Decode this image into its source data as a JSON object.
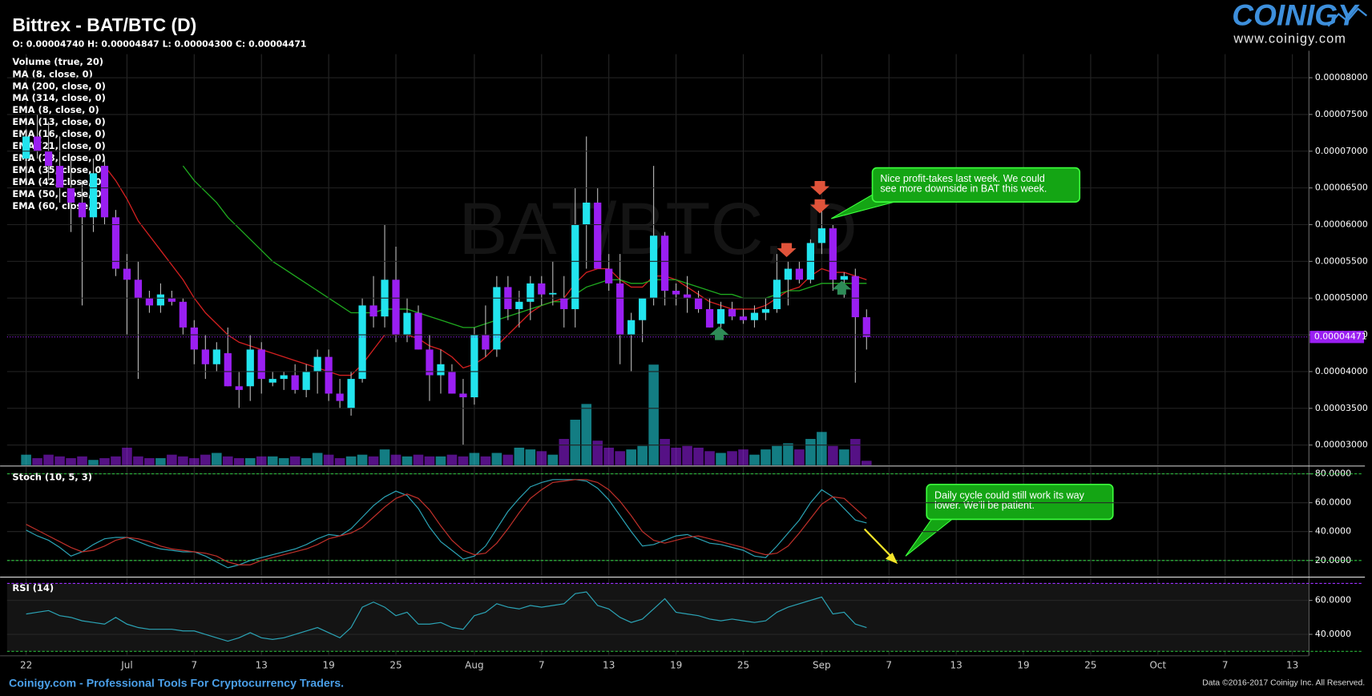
{
  "header": {
    "title": "Bittrex - BAT/BTC (D)",
    "ohlc": "O: 0.00004740 H: 0.00004847 L: 0.00004300 C: 0.00004471",
    "logo": "COINIGY",
    "url": "www.coinigy.com"
  },
  "chart_data": [
    {
      "type": "candlestick",
      "watermark": "BAT/BTC, D",
      "open": [
        6.9e-05,
        7.2e-05,
        7e-05,
        6.8e-05,
        6.5e-05,
        6.3e-05,
        6.1e-05,
        6.8e-05,
        6.1e-05,
        5.4e-05,
        5.25e-05,
        5e-05,
        4.9e-05,
        5e-05,
        4.95e-05,
        4.6e-05,
        4.3e-05,
        4.1e-05,
        4.25e-05,
        3.8e-05,
        3.8e-05,
        4.3e-05,
        3.85e-05,
        3.9e-05,
        3.95e-05,
        3.75e-05,
        4e-05,
        4.2e-05,
        3.7e-05,
        3.5e-05,
        3.9e-05,
        4.9e-05,
        4.75e-05,
        5.25e-05,
        4.5e-05,
        4.8e-05,
        4.3e-05,
        3.95e-05,
        4e-05,
        3.7e-05,
        3.65e-05,
        4.5e-05,
        4.3e-05,
        5.15e-05,
        4.85e-05,
        4.95e-05,
        5.2e-05,
        5.05e-05,
        5e-05,
        4.85e-05,
        6e-05,
        6.3e-05,
        5.4e-05,
        5.2e-05,
        4.5e-05,
        4.7e-05,
        5e-05,
        5.85e-05,
        5.1e-05,
        5.05e-05,
        5e-05,
        4.85e-05,
        4.65e-05,
        4.85e-05,
        4.75e-05,
        4.7e-05,
        4.8e-05,
        4.85e-05,
        5.25e-05,
        5.4e-05,
        5.25e-05,
        5.75e-05,
        5.95e-05,
        5.25e-05,
        5.3e-05,
        4.74e-05
      ],
      "high": [
        7.3e-05,
        7.5e-05,
        7.4e-05,
        7.2e-05,
        6.9e-05,
        6.6e-05,
        6.9e-05,
        6.9e-05,
        6.2e-05,
        5.6e-05,
        5.5e-05,
        5.1e-05,
        5.2e-05,
        5.1e-05,
        5e-05,
        4.7e-05,
        4.5e-05,
        4.4e-05,
        4.6e-05,
        4e-05,
        4.5e-05,
        4.4e-05,
        4e-05,
        4e-05,
        4.1e-05,
        4.1e-05,
        4.3e-05,
        4.3e-05,
        3.9e-05,
        4e-05,
        5e-05,
        5.3e-05,
        6e-05,
        5.7e-05,
        5e-05,
        4.9e-05,
        4.5e-05,
        4.3e-05,
        4.1e-05,
        3.9e-05,
        4.6e-05,
        4.9e-05,
        5.3e-05,
        5.3e-05,
        5.1e-05,
        5.3e-05,
        5.3e-05,
        5.5e-05,
        5.3e-05,
        6.5e-05,
        7.2e-05,
        6.5e-05,
        5.6e-05,
        5.6e-05,
        4.8e-05,
        5e-05,
        6.8e-05,
        5.9e-05,
        5.2e-05,
        5.3e-05,
        5.1e-05,
        5e-05,
        4.95e-05,
        4.95e-05,
        4.85e-05,
        4.9e-05,
        5e-05,
        5.6e-05,
        5.5e-05,
        5.5e-05,
        5.8e-05,
        6.2e-05,
        6e-05,
        5.35e-05,
        5.4e-05,
        4.847e-05
      ],
      "low": [
        6.6e-05,
        6.9e-05,
        6.6e-05,
        6.3e-05,
        5.9e-05,
        4.9e-05,
        5.9e-05,
        6e-05,
        5.3e-05,
        4.5e-05,
        3.9e-05,
        4.8e-05,
        4.8e-05,
        4.9e-05,
        4.5e-05,
        4.1e-05,
        3.9e-05,
        4e-05,
        3.8e-05,
        3.5e-05,
        3.6e-05,
        3.7e-05,
        3.8e-05,
        3.75e-05,
        3.7e-05,
        3.65e-05,
        3.7e-05,
        3.6e-05,
        3.5e-05,
        3.4e-05,
        3.85e-05,
        4.6e-05,
        4.6e-05,
        4.4e-05,
        4.4e-05,
        4.3e-05,
        3.6e-05,
        3.7e-05,
        3.7e-05,
        3e-05,
        3.55e-05,
        4.2e-05,
        4.2e-05,
        4.7e-05,
        4.6e-05,
        4.7e-05,
        4.9e-05,
        4.9e-05,
        4.6e-05,
        4.6e-05,
        5.4e-05,
        5.4e-05,
        5.1e-05,
        4.1e-05,
        4e-05,
        4.4e-05,
        4.9e-05,
        4.9e-05,
        4.9e-05,
        4.8e-05,
        4.8e-05,
        4.6e-05,
        4.6e-05,
        4.7e-05,
        4.65e-05,
        4.6e-05,
        4.7e-05,
        4.8e-05,
        4.9e-05,
        5.2e-05,
        5.2e-05,
        5.6e-05,
        5.1e-05,
        5e-05,
        3.85e-05,
        4.3e-05
      ],
      "close": [
        7.2e-05,
        7e-05,
        6.8e-05,
        6.5e-05,
        6.3e-05,
        6.1e-05,
        6.7e-05,
        6.1e-05,
        5.4e-05,
        5.25e-05,
        5e-05,
        4.9e-05,
        5.05e-05,
        4.95e-05,
        4.6e-05,
        4.3e-05,
        4.1e-05,
        4.3e-05,
        3.8e-05,
        3.75e-05,
        4.3e-05,
        3.9e-05,
        3.9e-05,
        3.95e-05,
        3.75e-05,
        4e-05,
        4.2e-05,
        3.7e-05,
        3.6e-05,
        3.9e-05,
        4.9e-05,
        4.75e-05,
        5.25e-05,
        4.5e-05,
        4.8e-05,
        4.3e-05,
        3.95e-05,
        4.1e-05,
        3.7e-05,
        3.65e-05,
        4.5e-05,
        4.3e-05,
        5.15e-05,
        4.85e-05,
        4.95e-05,
        5.2e-05,
        5.05e-05,
        5.07e-05,
        4.85e-05,
        6e-05,
        6.3e-05,
        5.4e-05,
        5.2e-05,
        4.5e-05,
        4.7e-05,
        5e-05,
        5.85e-05,
        5.1e-05,
        5.05e-05,
        5e-05,
        4.85e-05,
        4.6e-05,
        4.85e-05,
        4.75e-05,
        4.7e-05,
        4.8e-05,
        4.85e-05,
        5.25e-05,
        5.4e-05,
        5.25e-05,
        5.75e-05,
        5.95e-05,
        5.25e-05,
        5.3e-05,
        4.74e-05,
        4.471e-05
      ],
      "up_color": "#22e4ee",
      "down_color": "#9a1ff2",
      "close_label": "0.00004471",
      "xlim": [
        -1.7,
        114.4
      ],
      "xticks": [
        {
          "value": 0,
          "label": "22"
        },
        {
          "value": 9,
          "label": "Jul"
        },
        {
          "value": 15,
          "label": "7"
        },
        {
          "value": 21,
          "label": "13"
        },
        {
          "value": 27,
          "label": "19"
        },
        {
          "value": 33,
          "label": "25"
        },
        {
          "value": 40,
          "label": "Aug"
        },
        {
          "value": 46,
          "label": "7"
        },
        {
          "value": 52,
          "label": "13"
        },
        {
          "value": 58,
          "label": "19"
        },
        {
          "value": 64,
          "label": "25"
        },
        {
          "value": 71,
          "label": "Sep"
        },
        {
          "value": 77,
          "label": "7"
        },
        {
          "value": 83,
          "label": "13"
        },
        {
          "value": 89,
          "label": "19"
        },
        {
          "value": 95,
          "label": "25"
        },
        {
          "value": 101,
          "label": "Oct"
        },
        {
          "value": 107,
          "label": "7"
        },
        {
          "value": 113,
          "label": "13"
        }
      ],
      "ylim": [
        2.726e-05,
        8.32e-05
      ],
      "yticks": [
        {
          "value": 3e-05,
          "label": "0.00003000"
        },
        {
          "value": 3.5e-05,
          "label": "0.00003500"
        },
        {
          "value": 4e-05,
          "label": "0.00004000"
        },
        {
          "value": 4.5e-05,
          "label": "0.00004500"
        },
        {
          "value": 5e-05,
          "label": "0.00005000"
        },
        {
          "value": 5.5e-05,
          "label": "0.00005500"
        },
        {
          "value": 6e-05,
          "label": "0.00006000"
        },
        {
          "value": 6.5e-05,
          "label": "0.00006500"
        },
        {
          "value": 7e-05,
          "label": "0.00007000"
        },
        {
          "value": 7.5e-05,
          "label": "0.00007500"
        },
        {
          "value": 8e-05,
          "label": "0.00008000"
        }
      ],
      "grid": true,
      "volume": {
        "name": "Volume (true, 20)",
        "values": [
          12,
          8,
          12,
          10,
          8,
          10,
          6,
          8,
          10,
          20,
          10,
          8,
          8,
          12,
          10,
          8,
          12,
          14,
          10,
          8,
          8,
          10,
          10,
          8,
          10,
          8,
          14,
          12,
          8,
          10,
          12,
          10,
          18,
          12,
          10,
          12,
          10,
          10,
          12,
          10,
          14,
          10,
          14,
          12,
          20,
          18,
          16,
          12,
          30,
          52,
          70,
          28,
          20,
          16,
          18,
          22,
          115,
          30,
          20,
          22,
          20,
          16,
          14,
          16,
          18,
          12,
          18,
          22,
          25,
          18,
          30,
          38,
          22,
          18,
          30,
          5
        ]
      },
      "overlays": [
        {
          "name": "MA (8, close, 0)"
        },
        {
          "name": "MA (200, close, 0)"
        },
        {
          "name": "MA (314, close, 0)"
        },
        {
          "name": "EMA (8, close, 0)",
          "color": "#d42020",
          "values": [
            null,
            null,
            null,
            null,
            null,
            null,
            null,
            6.8e-05,
            6.6e-05,
            6.35e-05,
            6.05e-05,
            5.85e-05,
            5.65e-05,
            5.45e-05,
            5.25e-05,
            5e-05,
            4.8e-05,
            4.65e-05,
            4.5e-05,
            4.4e-05,
            4.35e-05,
            4.3e-05,
            4.25e-05,
            4.2e-05,
            4.15e-05,
            4.1e-05,
            4.05e-05,
            4e-05,
            3.95e-05,
            3.95e-05,
            4.1e-05,
            4.3e-05,
            4.5e-05,
            4.5e-05,
            4.5e-05,
            4.45e-05,
            4.35e-05,
            4.3e-05,
            4.2e-05,
            4.05e-05,
            4.1e-05,
            4.2e-05,
            4.35e-05,
            4.5e-05,
            4.65e-05,
            4.8e-05,
            4.9e-05,
            4.95e-05,
            5e-05,
            5.2e-05,
            5.35e-05,
            5.4e-05,
            5.4e-05,
            5.25e-05,
            5.15e-05,
            5.15e-05,
            5.3e-05,
            5.3e-05,
            5.25e-05,
            5.15e-05,
            5.05e-05,
            4.95e-05,
            4.9e-05,
            4.85e-05,
            4.85e-05,
            4.85e-05,
            4.9e-05,
            5e-05,
            5.1e-05,
            5.15e-05,
            5.3e-05,
            5.4e-05,
            5.35e-05,
            5.35e-05,
            5.3e-05,
            5.25e-05
          ]
        },
        {
          "name": "EMA (13, close, 0)"
        },
        {
          "name": "EMA (16, close, 0)"
        },
        {
          "name": "EMA (21, close, 0)"
        },
        {
          "name": "EMA (28, close, 0)",
          "color": "#1faa1f",
          "values": [
            null,
            null,
            null,
            null,
            null,
            null,
            null,
            null,
            null,
            null,
            null,
            null,
            null,
            null,
            6.8e-05,
            6.6e-05,
            6.45e-05,
            6.3e-05,
            6.1e-05,
            5.95e-05,
            5.8e-05,
            5.65e-05,
            5.5e-05,
            5.4e-05,
            5.3e-05,
            5.2e-05,
            5.1e-05,
            5e-05,
            4.9e-05,
            4.8e-05,
            4.8e-05,
            4.8e-05,
            4.85e-05,
            4.85e-05,
            4.85e-05,
            4.8e-05,
            4.75e-05,
            4.7e-05,
            4.65e-05,
            4.6e-05,
            4.6e-05,
            4.65e-05,
            4.7e-05,
            4.75e-05,
            4.8e-05,
            4.85e-05,
            4.9e-05,
            4.95e-05,
            4.95e-05,
            5.05e-05,
            5.15e-05,
            5.2e-05,
            5.25e-05,
            5.25e-05,
            5.2e-05,
            5.2e-05,
            5.25e-05,
            5.25e-05,
            5.25e-05,
            5.2e-05,
            5.15e-05,
            5.1e-05,
            5.05e-05,
            5.05e-05,
            5e-05,
            5e-05,
            5e-05,
            5.05e-05,
            5.1e-05,
            5.1e-05,
            5.15e-05,
            5.2e-05,
            5.2e-05,
            5.2e-05,
            5.2e-05,
            5.2e-05
          ]
        },
        {
          "name": "EMA (35, close, 0)"
        },
        {
          "name": "EMA (42, close, 0)"
        },
        {
          "name": "EMA (50, close, 0)"
        },
        {
          "name": "EMA (60, close, 0)"
        }
      ],
      "annotations": [
        {
          "lines": [
            "Nice profit-takes last week.  We could",
            "see more downside in BAT this week."
          ]
        },
        {
          "lines": [
            "Daily cycle could still work its way",
            "lower.  We'll be patient."
          ]
        }
      ]
    },
    {
      "type": "line",
      "title": "Stoch (10, 5, 3)",
      "series": [
        {
          "color": "#2ba3b5",
          "values": [
            41,
            37,
            34,
            29,
            23,
            26,
            31,
            35,
            36,
            36,
            33,
            30,
            28,
            27,
            26,
            26,
            23,
            19,
            15,
            17,
            20,
            22,
            24,
            26,
            28,
            31,
            35,
            38,
            37,
            42,
            50,
            58,
            64,
            68,
            65,
            56,
            43,
            33,
            27,
            21,
            23,
            30,
            42,
            54,
            63,
            71,
            74,
            76,
            76,
            76,
            75,
            70,
            62,
            51,
            40,
            30,
            31,
            34,
            37,
            38,
            35,
            32,
            31,
            29,
            27,
            23,
            22,
            30,
            39,
            48,
            60,
            69,
            64,
            56,
            48,
            46
          ]
        },
        {
          "color": "#c0302a",
          "values": [
            45,
            41,
            37,
            33,
            29,
            26,
            27,
            30,
            34,
            36,
            35,
            33,
            30,
            28,
            27,
            26,
            25,
            23,
            19,
            17,
            17,
            20,
            22,
            24,
            26,
            28,
            31,
            35,
            37,
            39,
            43,
            50,
            57,
            63,
            66,
            63,
            55,
            44,
            34,
            27,
            24,
            25,
            32,
            42,
            53,
            63,
            69,
            74,
            75,
            76,
            76,
            74,
            69,
            61,
            51,
            40,
            34,
            32,
            34,
            36,
            37,
            35,
            33,
            31,
            29,
            26,
            24,
            25,
            30,
            39,
            49,
            59,
            64,
            63,
            56,
            49
          ]
        }
      ],
      "ylim": [
        9.1,
        84.8
      ],
      "yticks": [
        {
          "value": 80,
          "label": "80.0000"
        },
        {
          "value": 60,
          "label": "60.0000"
        },
        {
          "value": 40,
          "label": "40.0000"
        },
        {
          "value": 20,
          "label": "20.0000"
        }
      ],
      "levels": [
        80,
        20
      ],
      "level_colors": [
        "#2ecc40",
        "#2ecc40"
      ]
    },
    {
      "type": "line",
      "title": "RSI (14)",
      "series": [
        {
          "color": "#2ba3b5",
          "values": [
            52,
            53,
            54,
            51,
            50,
            48,
            47,
            46,
            50,
            46,
            44,
            43,
            43,
            43,
            42,
            42,
            40,
            38,
            36,
            38,
            41,
            38,
            37,
            38,
            40,
            42,
            44,
            41,
            38,
            44,
            56,
            59,
            56,
            51,
            53,
            46,
            46,
            47,
            44,
            43,
            51,
            53,
            58,
            56,
            55,
            57,
            56,
            57,
            58,
            64,
            65,
            57,
            55,
            50,
            47,
            49,
            55,
            61,
            53,
            52,
            51,
            49,
            48,
            49,
            48,
            47,
            48,
            53,
            56,
            58,
            60,
            62,
            52,
            53,
            46,
            44
          ]
        }
      ],
      "ylim": [
        27.9,
        73.2
      ],
      "yticks": [
        {
          "value": 60,
          "label": "60.0000"
        },
        {
          "value": 40,
          "label": "40.0000"
        }
      ],
      "levels": [
        70,
        30
      ],
      "level_colors": [
        "#9b30ff",
        "#2ecc40"
      ]
    }
  ],
  "footer": {
    "left": "Coinigy.com - Professional Tools For Cryptocurrency Traders.",
    "right": "Data ©2016-2017 Coinigy Inc. All Reserved."
  }
}
